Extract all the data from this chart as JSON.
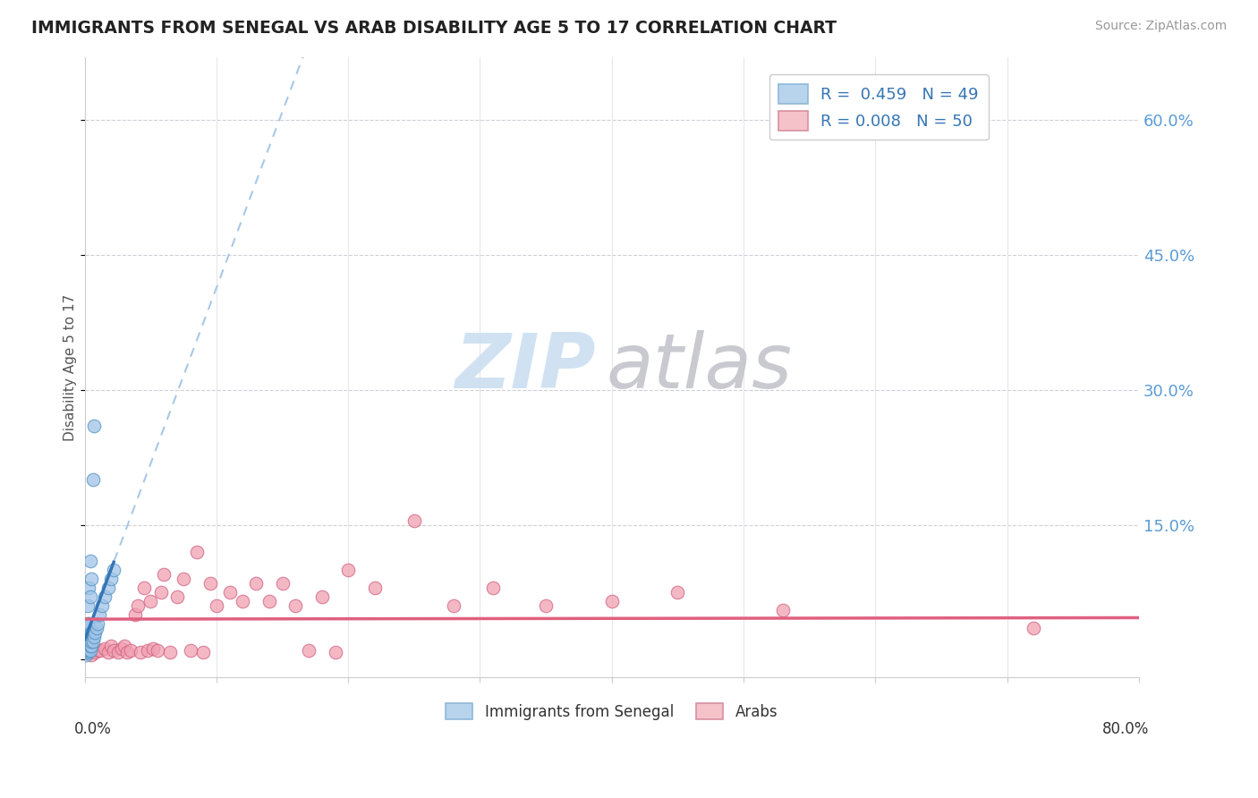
{
  "title": "IMMIGRANTS FROM SENEGAL VS ARAB DISABILITY AGE 5 TO 17 CORRELATION CHART",
  "source": "Source: ZipAtlas.com",
  "ylabel": "Disability Age 5 to 17",
  "ytick_values": [
    0.0,
    0.15,
    0.3,
    0.45,
    0.6
  ],
  "xlim": [
    0.0,
    0.8
  ],
  "ylim": [
    -0.02,
    0.67
  ],
  "legend1_label": "R =  0.459   N = 49",
  "legend2_label": "R = 0.008   N = 50",
  "legend1_facecolor": "#b8d4ed",
  "legend2_facecolor": "#f5c2ca",
  "trend1_color": "#3575b5",
  "trend1_dash_color": "#a8c8e8",
  "trend2_color": "#e06080",
  "scatter1_facecolor": "#a0c4e8",
  "scatter1_edgecolor": "#5090c0",
  "scatter2_facecolor": "#f0a0b0",
  "scatter2_edgecolor": "#d06080",
  "watermark_zip_color": "#c8ddf0",
  "watermark_atlas_color": "#c0c0c8",
  "senegal_x": [
    0.001,
    0.001,
    0.001,
    0.001,
    0.001,
    0.001,
    0.001,
    0.001,
    0.001,
    0.001,
    0.002,
    0.002,
    0.002,
    0.002,
    0.002,
    0.002,
    0.002,
    0.002,
    0.002,
    0.003,
    0.003,
    0.003,
    0.003,
    0.003,
    0.003,
    0.003,
    0.004,
    0.004,
    0.004,
    0.004,
    0.004,
    0.005,
    0.005,
    0.005,
    0.005,
    0.006,
    0.006,
    0.006,
    0.007,
    0.007,
    0.008,
    0.009,
    0.01,
    0.011,
    0.013,
    0.015,
    0.018,
    0.02,
    0.022
  ],
  "senegal_y": [
    0.005,
    0.008,
    0.01,
    0.012,
    0.014,
    0.016,
    0.02,
    0.025,
    0.03,
    0.035,
    0.008,
    0.01,
    0.012,
    0.015,
    0.018,
    0.022,
    0.028,
    0.04,
    0.06,
    0.01,
    0.012,
    0.015,
    0.02,
    0.025,
    0.04,
    0.08,
    0.01,
    0.015,
    0.02,
    0.07,
    0.11,
    0.015,
    0.02,
    0.03,
    0.09,
    0.02,
    0.03,
    0.2,
    0.025,
    0.26,
    0.03,
    0.035,
    0.04,
    0.05,
    0.06,
    0.07,
    0.08,
    0.09,
    0.1
  ],
  "arab_x": [
    0.005,
    0.008,
    0.01,
    0.012,
    0.015,
    0.018,
    0.02,
    0.022,
    0.025,
    0.028,
    0.03,
    0.032,
    0.035,
    0.038,
    0.04,
    0.042,
    0.045,
    0.048,
    0.05,
    0.052,
    0.055,
    0.058,
    0.06,
    0.065,
    0.07,
    0.075,
    0.08,
    0.085,
    0.09,
    0.095,
    0.1,
    0.11,
    0.12,
    0.13,
    0.14,
    0.15,
    0.16,
    0.17,
    0.18,
    0.19,
    0.2,
    0.22,
    0.25,
    0.28,
    0.31,
    0.35,
    0.4,
    0.45,
    0.53,
    0.72
  ],
  "arab_y": [
    0.005,
    0.008,
    0.01,
    0.01,
    0.012,
    0.008,
    0.015,
    0.01,
    0.008,
    0.012,
    0.015,
    0.008,
    0.01,
    0.05,
    0.06,
    0.008,
    0.08,
    0.01,
    0.065,
    0.012,
    0.01,
    0.075,
    0.095,
    0.008,
    0.07,
    0.09,
    0.01,
    0.12,
    0.008,
    0.085,
    0.06,
    0.075,
    0.065,
    0.085,
    0.065,
    0.085,
    0.06,
    0.01,
    0.07,
    0.008,
    0.1,
    0.08,
    0.155,
    0.06,
    0.08,
    0.06,
    0.065,
    0.075,
    0.055,
    0.035
  ],
  "trend1_x_solid_end": 0.022,
  "trend1_x_dash_end": 0.8,
  "trend2_y_intercept": 0.045,
  "trend2_slope": 0.002
}
